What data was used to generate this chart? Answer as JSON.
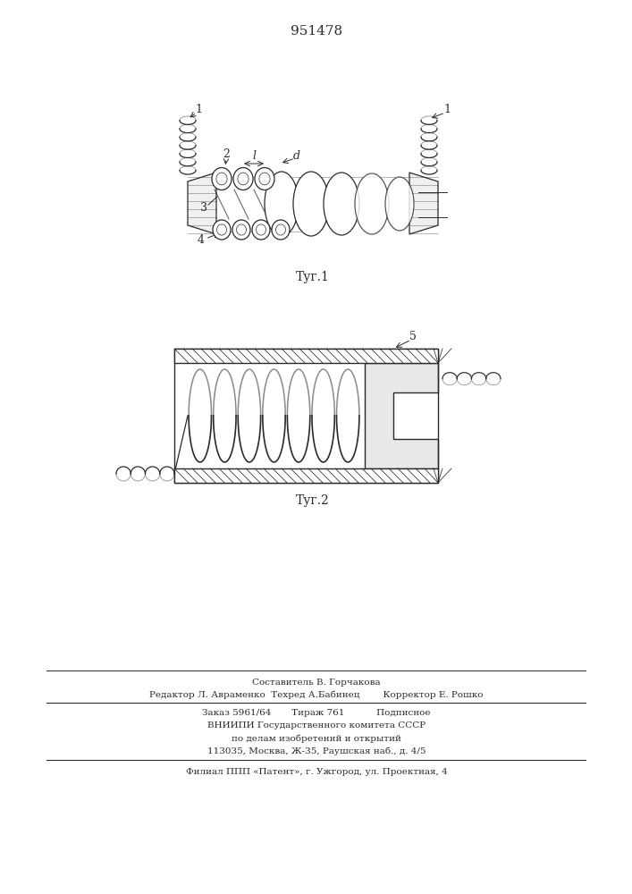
{
  "patent_number": "951478",
  "fig1_caption": "Τуг.1",
  "fig2_caption": "Τуг.2",
  "footer_line1": "Составитель В. Горчакова",
  "footer_line2": "Редактор Л. Авраменко  Техред А.Бабинец        Корректор Е. Рошко",
  "footer_line3": "Заказ 5961/64       Тираж 761           Подписное",
  "footer_line4": "ВНИИПИ Государственного комитета СССР",
  "footer_line5": "по делам изобретений и открытий",
  "footer_line6": "113035, Москва, Ж-35, Раушская наб., д. 4/5",
  "footer_line7": "Филиал ППП «Патент», г. Ужгород, ул. Проектная, 4",
  "lc": "#2a2a2a"
}
